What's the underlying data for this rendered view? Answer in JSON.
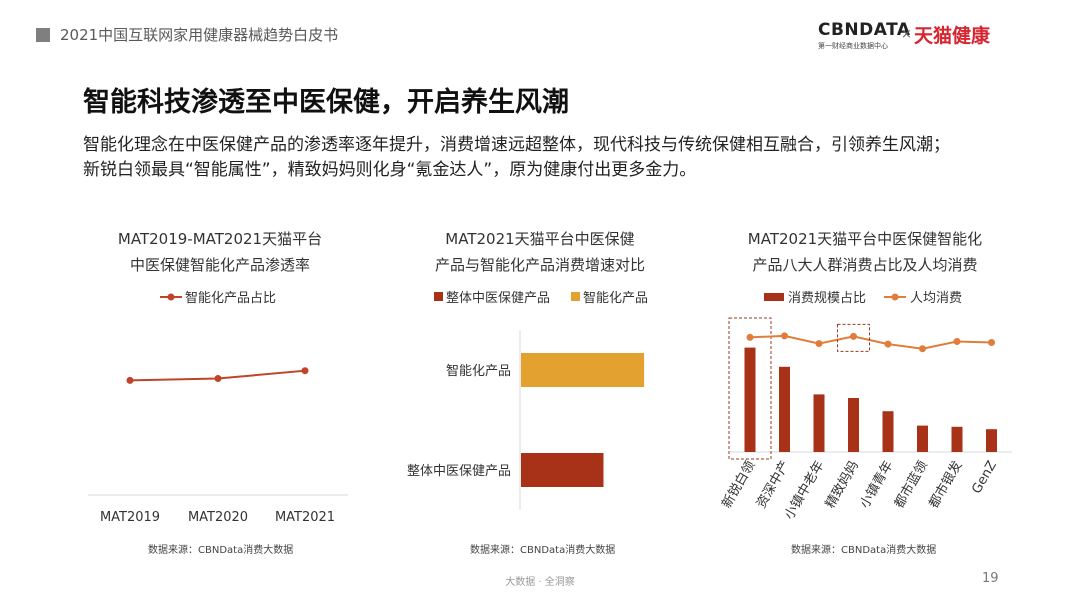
{
  "header": {
    "report_title": "2021中国互联网家用健康器械趋势白皮书",
    "logo_cbn": "CBNDATA",
    "logo_cbn_sub": "第一财经商业数据中心",
    "logo_x": "×",
    "logo_tmall": "天猫健康"
  },
  "main": {
    "title": "智能科技渗透至中医保健，开启养生风潮",
    "paragraph_line1": "智能化理念在中医保健产品的渗透率逐年提升，消费增速远超整体，现代科技与传统保健相互融合，引领养生风潮；",
    "paragraph_line2": "新锐白领最具“智能属性”，精致妈妈则化身“氪金达人”，原为健康付出更多金力。"
  },
  "colors": {
    "line_red": "#c0442a",
    "bar_dark_red": "#a83217",
    "bar_orange": "#e3a12f",
    "line_orange": "#e07d3a",
    "highlight_border": "#9b3a22"
  },
  "chart_data": [
    {
      "type": "line",
      "title_line1": "MAT2019-MAT2021天猫平台",
      "title_line2": "中医保健智能化产品渗透率",
      "x": [
        "MAT2019",
        "MAT2020",
        "MAT2021"
      ],
      "series": [
        {
          "name": "智能化产品占比",
          "values": [
            0.3,
            0.36,
            0.62
          ]
        }
      ],
      "ylim": [
        -3.5,
        2.3
      ],
      "y_axis_visible": false,
      "legend_position": "top",
      "source": "数据来源：CBNData消费大数据"
    },
    {
      "type": "bar",
      "orientation": "horizontal",
      "title_line1": "MAT2021天猫平台中医保健",
      "title_line2": "产品与智能化产品消费增速对比",
      "categories": [
        "智能化产品",
        "整体中医保健产品"
      ],
      "series": [
        {
          "name": "整体中医保健产品",
          "values": [
            0,
            0.65
          ]
        },
        {
          "name": "智能化产品",
          "values": [
            0.97,
            0
          ]
        }
      ],
      "xlim": [
        0,
        1
      ],
      "value_axis_visible": false,
      "legend_position": "top",
      "source": "数据来源：CBNData消费大数据"
    },
    {
      "type": "bar",
      "title_line1": "MAT2021天猫平台中医保健智能化",
      "title_line2": "产品八大人群消费占比及人均消费",
      "categories": [
        "新锐白领",
        "资深中产",
        "小镇中老年",
        "精致妈妈",
        "小镇青年",
        "都市蓝领",
        "都市银发",
        "GenZ"
      ],
      "series": [
        {
          "name": "消费规模占比",
          "kind": "bar",
          "values": [
            0.87,
            0.71,
            0.48,
            0.45,
            0.34,
            0.22,
            0.21,
            0.19
          ]
        },
        {
          "name": "人均消费",
          "kind": "line",
          "values": [
            1.8,
            1.83,
            1.68,
            1.82,
            1.67,
            1.58,
            1.72,
            1.7
          ]
        }
      ],
      "bar_ylim": [
        0,
        1
      ],
      "line_ylim": [
        0,
        2
      ],
      "highlighted": [
        "新锐白领",
        "精致妈妈"
      ],
      "legend_position": "top",
      "source": "数据来源：CBNData消费大数据"
    }
  ],
  "footer": {
    "text": "大数据 · 全洞察",
    "page_number": "19"
  }
}
